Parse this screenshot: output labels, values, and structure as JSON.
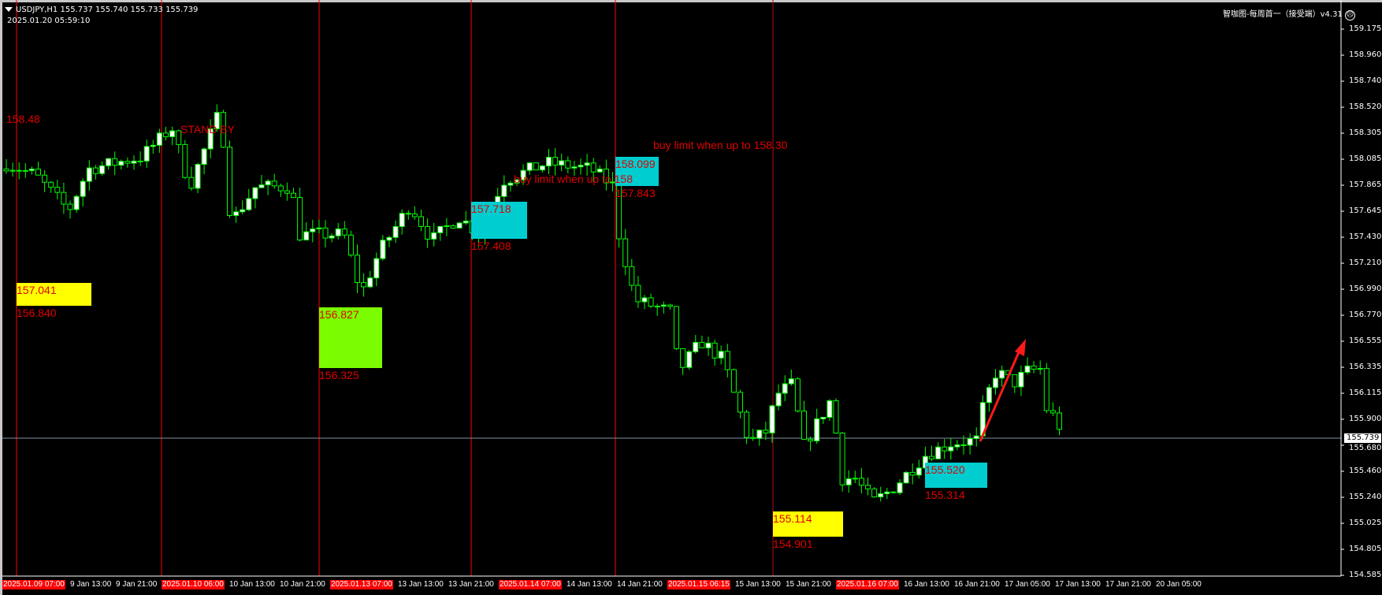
{
  "header": {
    "symbol_line": "USDJPY,H1  155.737 155.740 155.733 155.739",
    "datetime": "2025.01.20 05:59:10",
    "indicator_title": "智咖图-每周首一（接受端）v4.31",
    "indicator_icon": "sad-face-icon"
  },
  "colors": {
    "background": "#000000",
    "candle_outline": "#00ff00",
    "bull_fill": "#ffffff",
    "bear_fill": "#000000",
    "vline": "#ff0000",
    "annotation": "#e00000",
    "yellow_box": "#ffff00",
    "green_box": "#7cfc00",
    "cyan_box": "#00cdd0",
    "price_line": "#7f8fa6"
  },
  "price_axis": {
    "ticks": [
      "159.175",
      "158.960",
      "158.740",
      "158.520",
      "158.305",
      "158.085",
      "157.865",
      "157.645",
      "157.430",
      "157.210",
      "156.990",
      "156.770",
      "156.555",
      "156.335",
      "156.115",
      "155.900",
      "155.680",
      "155.460",
      "155.240",
      "155.025",
      "154.805",
      "154.585"
    ],
    "current_price": "155.739"
  },
  "time_axis": {
    "labels": [
      "9 Jan 13:00",
      "9 Jan 21:00",
      "10 Jan 13:00",
      "10 Jan 21:00",
      "13 Jan 13:00",
      "13 Jan 21:00",
      "14 Jan 13:00",
      "14 Jan 21:00",
      "15 Jan 13:00",
      "15 Jan 21:00",
      "16 Jan 13:00",
      "16 Jan 21:00",
      "17 Jan 05:00",
      "17 Jan 13:00",
      "17 Jan 21:00",
      "20 Jan 05:00"
    ],
    "highlighted": [
      "2025.01.09 07:00",
      "2025.01.10 06:00",
      "2025.01.13 07:00",
      "2025.01.14 07:00",
      "2025.01.15 06:15",
      "2025.01.16 07:00"
    ]
  },
  "annotations": {
    "level_1": "158.48",
    "stand_by": "STAND BY",
    "buy_limit_1": "buy limit when up to 158",
    "buy_limit_2": "buy limit when up to 158.30"
  },
  "boxes": [
    {
      "color": "yellow",
      "top": "157.041",
      "bottom": "156.840"
    },
    {
      "color": "green",
      "top": "156.827",
      "bottom": "156.325"
    },
    {
      "color": "cyan",
      "top": "157.718",
      "bottom": "157.408"
    },
    {
      "color": "cyan",
      "top": "158.099",
      "bottom": "157.843"
    },
    {
      "color": "yellow",
      "top": "155.114",
      "bottom": "154.901"
    },
    {
      "color": "cyan",
      "top": "155.520",
      "bottom": "155.314"
    }
  ]
}
